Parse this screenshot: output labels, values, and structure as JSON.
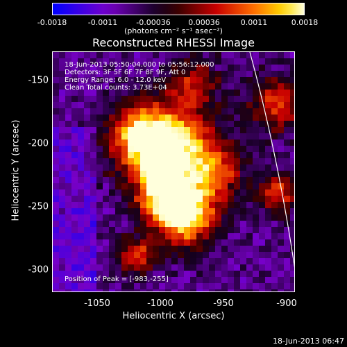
{
  "colorbar": {
    "ticks": [
      "-0.0018",
      "-0.0011",
      "-0.00036",
      "0.00036",
      "0.0011",
      "0.0018"
    ],
    "unit": "(photons cm⁻² s⁻¹ asec⁻²)"
  },
  "title": "Reconstructed RHESSI Image",
  "info": {
    "line1": "18-Jun-2013 05:50:04.000 to 05:56:12.000",
    "line2": "Detectors: 3F 5F 6F 7F 8F 9F, Att 0",
    "line3": "Energy Range: 6.0 - 12.0 keV",
    "line4": "Clean    Total counts: 3.73E+04",
    "peak": "Position of Peak = [-983,-255]"
  },
  "axes": {
    "xlabel": "Heliocentric X (arcsec)",
    "ylabel": "Heliocentric Y (arcsec)",
    "xticks": [
      "-1050",
      "-1000",
      "-950",
      "-900"
    ],
    "yticks": [
      "-150",
      "-200",
      "-250",
      "-300"
    ]
  },
  "timestamp": "18-Jun-2013 06:47"
}
